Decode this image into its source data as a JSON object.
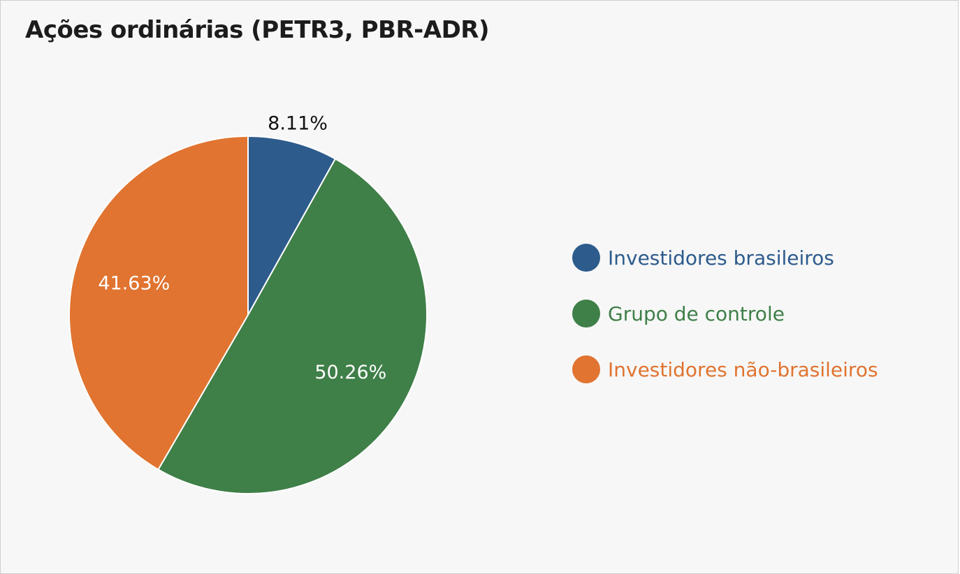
{
  "chart_data": {
    "type": "pie",
    "title": "Ações ordinárias (PETR3, PBR-ADR)",
    "legend_position": "right",
    "slices": [
      {
        "name": "Investidores brasileiros",
        "value": 8.11,
        "label": "8.11%",
        "color": "#2d5b8c",
        "label_color": "#111111",
        "label_placement": "outside"
      },
      {
        "name": "Grupo de controle",
        "value": 50.26,
        "label": "50.26%",
        "color": "#3f7f48",
        "label_color": "#ffffff",
        "label_placement": "inside"
      },
      {
        "name": "Investidores não-brasileiros",
        "value": 41.63,
        "label": "41.63%",
        "color": "#e07430",
        "label_color": "#ffffff",
        "label_placement": "inside"
      }
    ]
  }
}
